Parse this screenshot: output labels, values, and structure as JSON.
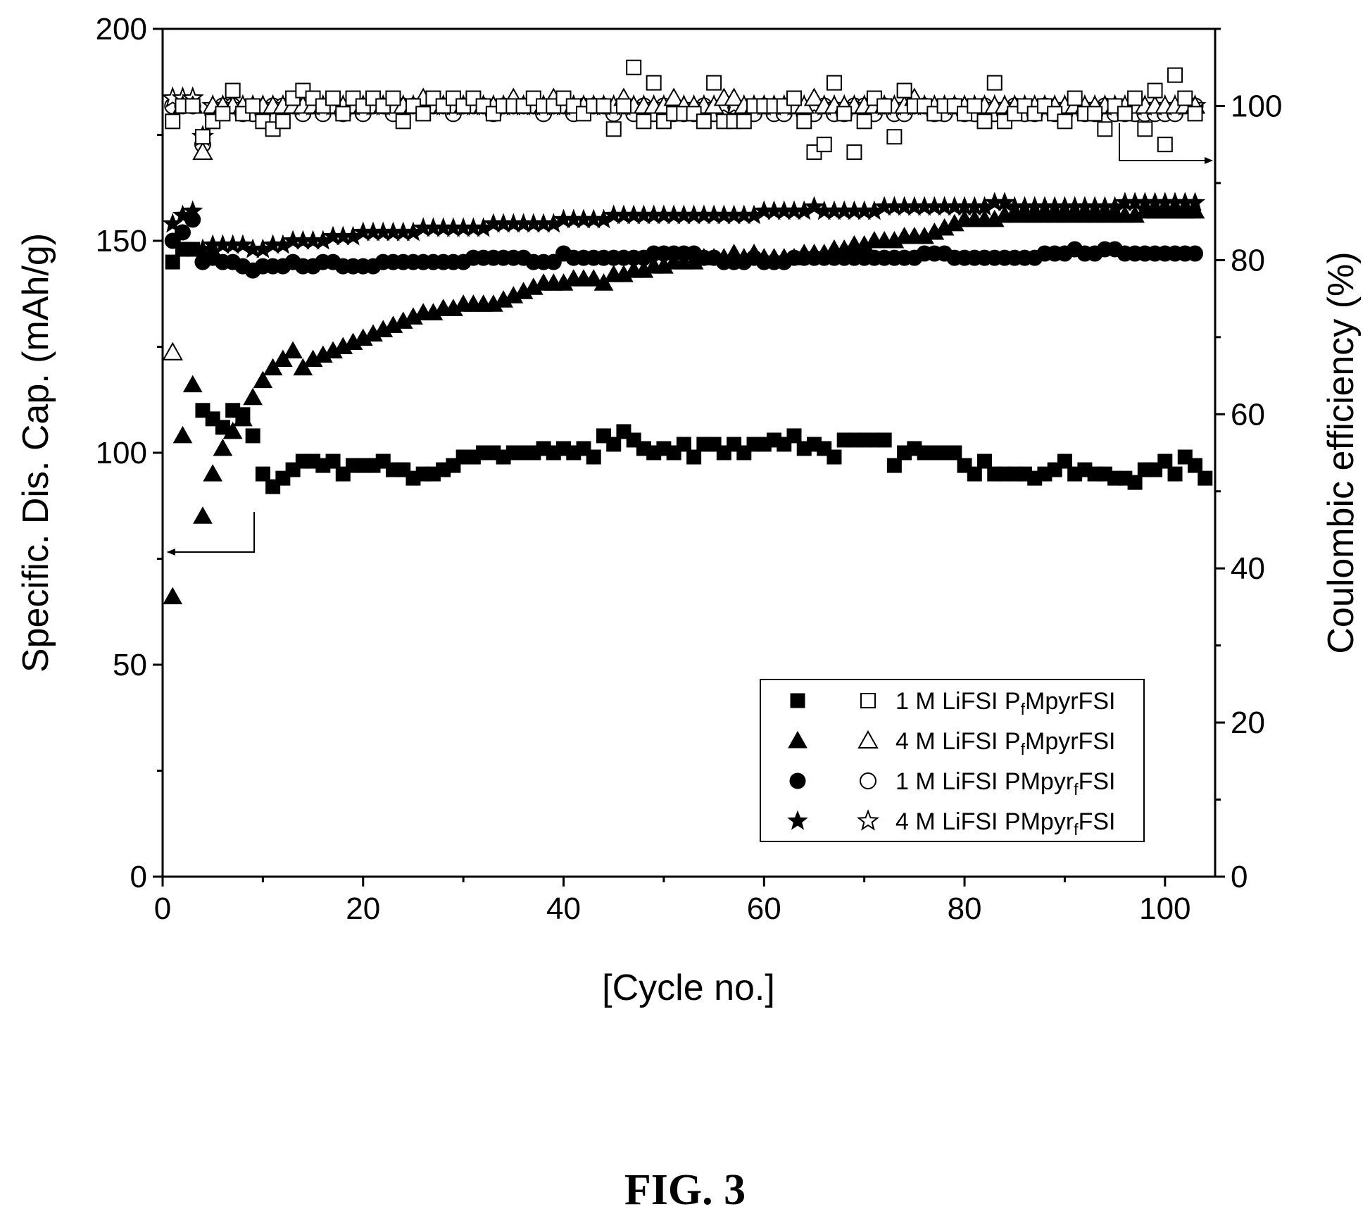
{
  "figure_label": "FIG. 3",
  "chart_data": {
    "type": "scatter",
    "xlabel": "[Cycle no.]",
    "ylabel": "Specific. Dis. Cap. (mAh/g)",
    "y2label": "Coulombic efficiency (%)",
    "xlim": [
      0,
      105
    ],
    "ylim": [
      0,
      200
    ],
    "y2lim": [
      0,
      110
    ],
    "x_ticks": [
      "0",
      "20",
      "40",
      "60",
      "80",
      "100"
    ],
    "y_ticks": [
      "0",
      "50",
      "100",
      "150",
      "200"
    ],
    "y2_ticks": [
      "0",
      "20",
      "40",
      "60",
      "80",
      "100"
    ],
    "legend_position": "bottom-right",
    "grid": false,
    "series": [
      {
        "name": "1 M LiFSI PfMpyrFSI",
        "label_parts": [
          "1 M LiFSI P",
          "f",
          "MpyrFSI"
        ],
        "marker": "square",
        "capacity": [
          145,
          148,
          148,
          110,
          108,
          106,
          110,
          109,
          104,
          95,
          92,
          94,
          96,
          98,
          98,
          97,
          98,
          95,
          97,
          97,
          97,
          98,
          96,
          96,
          94,
          95,
          95,
          96,
          97,
          99,
          99,
          100,
          100,
          99,
          100,
          100,
          100,
          101,
          100,
          101,
          100,
          101,
          99,
          104,
          102,
          105,
          103,
          101,
          100,
          101,
          100,
          102,
          99,
          102,
          102,
          100,
          102,
          100,
          102,
          102,
          103,
          102,
          104,
          101,
          102,
          101,
          99,
          103,
          103,
          103,
          103,
          103,
          97,
          100,
          101,
          100,
          100,
          100,
          100,
          97,
          95,
          98,
          95,
          95,
          95,
          95,
          94,
          95,
          96,
          98,
          95,
          96,
          95,
          95,
          94,
          94,
          93,
          96,
          96,
          98,
          95,
          99,
          97,
          94
        ],
        "efficiency": [
          98,
          100,
          100,
          96,
          98,
          99,
          102,
          99,
          100,
          98,
          97,
          98,
          101,
          102,
          101,
          100,
          101,
          99,
          101,
          100,
          101,
          100,
          101,
          98,
          100,
          99,
          101,
          100,
          101,
          100,
          101,
          100,
          99,
          100,
          100,
          100,
          101,
          100,
          100,
          101,
          100,
          99,
          100,
          100,
          97,
          100,
          105,
          98,
          103,
          98,
          99,
          99,
          99,
          98,
          103,
          98,
          98,
          98,
          100,
          100,
          100,
          100,
          101,
          98,
          94,
          95,
          103,
          99,
          94,
          98,
          101,
          100,
          96,
          102,
          100,
          100,
          99,
          100,
          100,
          99,
          100,
          98,
          103,
          98,
          99,
          100,
          99,
          100,
          99,
          98,
          101,
          99,
          99,
          97,
          100,
          99,
          101,
          97,
          102,
          95,
          104,
          101,
          99
        ],
        "efficiency_x": [
          1,
          2,
          3,
          4,
          5,
          6,
          7,
          8,
          9,
          10,
          11,
          12,
          13,
          14,
          15,
          16,
          17,
          18,
          19,
          20,
          21,
          22,
          23,
          24,
          25,
          26,
          27,
          28,
          29,
          30,
          31,
          32,
          33,
          34,
          35,
          36,
          37,
          38,
          39,
          40,
          41,
          42,
          43,
          44,
          45,
          46,
          47,
          48,
          49,
          50,
          51,
          52,
          53,
          54,
          55,
          56,
          57,
          58,
          59,
          60,
          61,
          62,
          63,
          64,
          65,
          66,
          67,
          68,
          69,
          70,
          71,
          72,
          73,
          74,
          75,
          76,
          77,
          78,
          79,
          80,
          81,
          82,
          83,
          84,
          85,
          86,
          87,
          88,
          89,
          90,
          91,
          92,
          93,
          94,
          95,
          96,
          97,
          98,
          99,
          100,
          101,
          102,
          103
        ]
      },
      {
        "name": "4 M LiFSI PfMpyrFSI",
        "label_parts": [
          "4 M LiFSI P",
          "f",
          "MpyrFSI"
        ],
        "marker": "triangle",
        "capacity": [
          66,
          104,
          116,
          85,
          95,
          101,
          105,
          108,
          113,
          117,
          120,
          122,
          124,
          120,
          122,
          123,
          124,
          125,
          126,
          127,
          128,
          129,
          130,
          131,
          132,
          133,
          133,
          134,
          134,
          135,
          135,
          135,
          135,
          136,
          137,
          138,
          139,
          140,
          140,
          140,
          141,
          141,
          141,
          140,
          142,
          142,
          143,
          143,
          144,
          144,
          145,
          145,
          145,
          146,
          146,
          146,
          147,
          146,
          147,
          146,
          146,
          146,
          146,
          147,
          147,
          147,
          148,
          148,
          149,
          149,
          150,
          150,
          150,
          151,
          151,
          151,
          152,
          153,
          154,
          155,
          155,
          155,
          155,
          156,
          156,
          156,
          156,
          156,
          156,
          156,
          156,
          156,
          156,
          156,
          156,
          156,
          156,
          157,
          157,
          157,
          157,
          157,
          157
        ],
        "efficiency": [
          68,
          100,
          100,
          94,
          100,
          100,
          100,
          100,
          100,
          100,
          100,
          100,
          100,
          100,
          100,
          100,
          100,
          100,
          100,
          100,
          100,
          100,
          100,
          100,
          100,
          101,
          100,
          100,
          100,
          100,
          100,
          100,
          100,
          100,
          101,
          100,
          100,
          100,
          101,
          100,
          100,
          100,
          100,
          100,
          100,
          101,
          100,
          100,
          100,
          100,
          101,
          100,
          100,
          100,
          100,
          101,
          101,
          100,
          100,
          100,
          100,
          100,
          100,
          100,
          101,
          100,
          100,
          100,
          100,
          100,
          100,
          100,
          100,
          100,
          101,
          100,
          100,
          100,
          100,
          100,
          100,
          100,
          100,
          100,
          100,
          100,
          100,
          100,
          100,
          100,
          100,
          100,
          100,
          100,
          100,
          100,
          100,
          100,
          100,
          100,
          100,
          100,
          100
        ]
      },
      {
        "name": "1 M LiFSI PMpyrfFSI",
        "label_parts": [
          "1 M LiFSI PMpyr",
          "f",
          "FSI"
        ],
        "marker": "circle",
        "capacity": [
          150,
          152,
          155,
          145,
          146,
          145,
          145,
          144,
          143,
          144,
          144,
          144,
          145,
          144,
          144,
          145,
          145,
          144,
          144,
          144,
          144,
          145,
          145,
          145,
          145,
          145,
          145,
          145,
          145,
          145,
          146,
          146,
          146,
          146,
          146,
          146,
          145,
          145,
          145,
          147,
          146,
          146,
          146,
          146,
          146,
          146,
          146,
          146,
          147,
          147,
          147,
          147,
          147,
          146,
          146,
          145,
          145,
          145,
          146,
          145,
          145,
          145,
          146,
          146,
          146,
          146,
          146,
          146,
          146,
          146,
          146,
          146,
          146,
          146,
          146,
          147,
          147,
          147,
          146,
          146,
          146,
          146,
          146,
          146,
          146,
          146,
          146,
          147,
          147,
          147,
          148,
          147,
          147,
          148,
          148,
          147,
          147,
          147,
          147,
          147,
          147,
          147,
          147
        ],
        "efficiency": [
          100,
          100,
          100,
          95,
          99,
          100,
          100,
          99,
          99,
          99,
          100,
          100,
          100,
          99,
          100,
          99,
          100,
          99,
          100,
          99,
          100,
          100,
          99,
          100,
          100,
          100,
          100,
          100,
          99,
          100,
          100,
          100,
          99,
          100,
          100,
          100,
          100,
          99,
          100,
          100,
          99,
          100,
          100,
          100,
          99,
          100,
          99,
          100,
          99,
          100,
          99,
          99,
          99,
          100,
          99,
          99,
          100,
          99,
          99,
          100,
          99,
          99,
          100,
          99,
          99,
          100,
          99,
          99,
          100,
          100,
          99,
          100,
          99,
          99,
          100,
          100,
          99,
          99,
          100,
          99,
          99,
          100,
          99,
          99,
          100,
          99,
          99,
          100,
          99,
          99,
          100,
          99,
          99,
          100,
          99,
          99,
          99,
          99,
          99,
          99,
          99,
          100,
          100
        ]
      },
      {
        "name": "4 M LiFSI PMpyrfFSI",
        "label_parts": [
          "4 M LiFSI PMpyr",
          "f",
          "FSI"
        ],
        "marker": "star",
        "capacity": [
          154,
          156,
          157,
          148,
          149,
          149,
          149,
          149,
          148,
          148,
          149,
          149,
          150,
          150,
          150,
          150,
          151,
          151,
          151,
          152,
          152,
          152,
          152,
          152,
          152,
          153,
          153,
          153,
          153,
          153,
          153,
          153,
          154,
          154,
          154,
          154,
          154,
          154,
          154,
          155,
          155,
          155,
          155,
          155,
          156,
          156,
          156,
          156,
          156,
          156,
          156,
          156,
          156,
          156,
          156,
          156,
          156,
          156,
          156,
          157,
          157,
          157,
          157,
          157,
          158,
          157,
          157,
          157,
          157,
          157,
          157,
          158,
          158,
          158,
          158,
          158,
          158,
          158,
          158,
          158,
          158,
          158,
          159,
          159,
          158,
          158,
          158,
          158,
          158,
          158,
          158,
          158,
          158,
          158,
          158,
          159,
          159,
          159,
          159,
          159,
          159,
          159,
          159
        ],
        "efficiency": [
          101,
          101,
          101,
          96,
          100,
          100,
          100,
          100,
          100,
          100,
          100,
          100,
          100,
          100,
          100,
          100,
          100,
          100,
          100,
          100,
          100,
          100,
          100,
          100,
          100,
          100,
          100,
          100,
          100,
          100,
          100,
          100,
          100,
          100,
          100,
          100,
          100,
          100,
          100,
          100,
          100,
          100,
          100,
          100,
          100,
          100,
          100,
          100,
          100,
          100,
          100,
          100,
          100,
          100,
          100,
          100,
          100,
          100,
          100,
          100,
          100,
          100,
          100,
          100,
          100,
          100,
          100,
          100,
          100,
          100,
          100,
          100,
          100,
          100,
          100,
          100,
          100,
          100,
          100,
          100,
          100,
          100,
          100,
          100,
          100,
          100,
          100,
          100,
          100,
          100,
          100,
          100,
          100,
          100,
          100,
          100,
          100,
          100,
          100,
          100,
          100,
          100,
          100
        ]
      }
    ]
  }
}
